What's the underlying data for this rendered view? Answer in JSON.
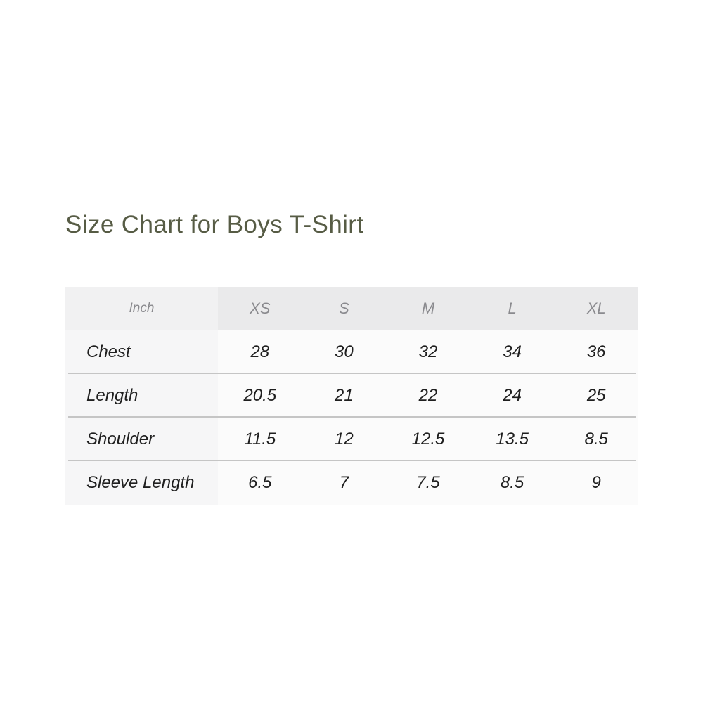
{
  "colors": {
    "page_bg": "#ffffff",
    "title_color": "#575c45",
    "header_unit_bg": "#f1f1f2",
    "header_size_bg": "#eaeaeb",
    "label_col_bg": "#f6f6f7",
    "value_cell_bg": "#fbfbfb",
    "divider": "#c5c5c5",
    "header_text": "#8a8a8e",
    "body_text": "#1f1f1f"
  },
  "chart_data": {
    "type": "table",
    "title": "Size Chart for Boys T-Shirt",
    "unit": "Inch",
    "columns": [
      "XS",
      "S",
      "M",
      "L",
      "XL"
    ],
    "rows": [
      {
        "label": "Chest",
        "values": [
          28,
          30,
          32,
          34,
          36
        ]
      },
      {
        "label": "Length",
        "values": [
          20.5,
          21,
          22,
          24,
          25
        ]
      },
      {
        "label": "Shoulder",
        "values": [
          11.5,
          12,
          12.5,
          13.5,
          8.5
        ]
      },
      {
        "label": "Sleeve Length",
        "values": [
          6.5,
          7,
          7.5,
          8.5,
          9
        ]
      }
    ]
  }
}
